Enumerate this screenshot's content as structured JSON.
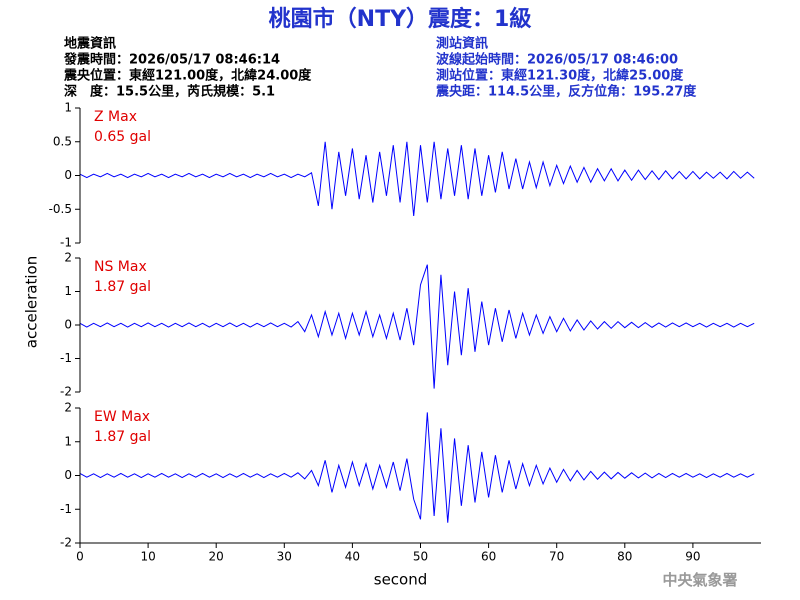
{
  "header": {
    "title": "桃園市（NTY）震度：1級",
    "left": [
      "地震資訊",
      "發震時間：2026/05/17 08:46:14",
      "震央位置：東經121.00度，北緯24.00度",
      "深　度：15.5公里，芮氏規模：5.1"
    ],
    "right": [
      "測站資訊",
      "波線起始時間：2026/05/17 08:46:00",
      "測站位置：東經121.30度，北緯25.00度",
      "震央距：114.5公里，反方位角：195.27度"
    ],
    "y_label": "acceleration",
    "footer": "中央氣象署"
  },
  "chart_data": [
    {
      "type": "line",
      "title": "Z Max",
      "annotation": "0.65 gal",
      "color": "#0000ff",
      "xlim": [
        0,
        100
      ],
      "ylim": [
        -1,
        1
      ],
      "yticks": [
        -1,
        -0.5,
        0,
        0.5,
        1
      ],
      "x": [
        0,
        1,
        2,
        3,
        4,
        5,
        6,
        7,
        8,
        9,
        10,
        11,
        12,
        13,
        14,
        15,
        16,
        17,
        18,
        19,
        20,
        21,
        22,
        23,
        24,
        25,
        26,
        27,
        28,
        29,
        30,
        31,
        32,
        33,
        34,
        35,
        36,
        37,
        38,
        39,
        40,
        41,
        42,
        43,
        44,
        45,
        46,
        47,
        48,
        49,
        50,
        51,
        52,
        53,
        54,
        55,
        56,
        57,
        58,
        59,
        60,
        61,
        62,
        63,
        64,
        65,
        66,
        67,
        68,
        69,
        70,
        71,
        72,
        73,
        74,
        75,
        76,
        77,
        78,
        79,
        80,
        81,
        82,
        83,
        84,
        85,
        86,
        87,
        88,
        89,
        90,
        91,
        92,
        93,
        94,
        95,
        96,
        97,
        98,
        99
      ],
      "values": [
        0.02,
        -0.03,
        0.02,
        -0.02,
        0.03,
        -0.02,
        0.02,
        -0.03,
        0.02,
        -0.02,
        0.03,
        -0.02,
        0.02,
        -0.03,
        0.02,
        -0.02,
        0.03,
        -0.02,
        0.02,
        -0.03,
        0.02,
        -0.02,
        0.03,
        -0.02,
        0.02,
        -0.03,
        0.02,
        -0.02,
        0.03,
        -0.02,
        0.02,
        -0.03,
        0.02,
        -0.02,
        0.04,
        -0.45,
        0.5,
        -0.5,
        0.35,
        -0.3,
        0.4,
        -0.35,
        0.3,
        -0.4,
        0.35,
        -0.3,
        0.45,
        -0.4,
        0.5,
        -0.6,
        0.45,
        -0.4,
        0.5,
        -0.35,
        0.4,
        -0.3,
        0.45,
        -0.35,
        0.4,
        -0.3,
        0.3,
        -0.25,
        0.35,
        -0.2,
        0.25,
        -0.2,
        0.2,
        -0.18,
        0.2,
        -0.15,
        0.15,
        -0.12,
        0.14,
        -0.1,
        0.12,
        -0.1,
        0.1,
        -0.08,
        0.1,
        -0.08,
        0.08,
        -0.07,
        0.08,
        -0.06,
        0.07,
        -0.06,
        0.07,
        -0.05,
        0.06,
        -0.05,
        0.06,
        -0.05,
        0.05,
        -0.04,
        0.05,
        -0.05,
        0.06,
        -0.04,
        0.05,
        -0.04
      ]
    },
    {
      "type": "line",
      "title": "NS Max",
      "annotation": "1.87 gal",
      "color": "#0000ff",
      "xlim": [
        0,
        100
      ],
      "ylim": [
        -2,
        2
      ],
      "yticks": [
        -2,
        -1,
        0,
        1,
        2
      ],
      "x": [
        0,
        1,
        2,
        3,
        4,
        5,
        6,
        7,
        8,
        9,
        10,
        11,
        12,
        13,
        14,
        15,
        16,
        17,
        18,
        19,
        20,
        21,
        22,
        23,
        24,
        25,
        26,
        27,
        28,
        29,
        30,
        31,
        32,
        33,
        34,
        35,
        36,
        37,
        38,
        39,
        40,
        41,
        42,
        43,
        44,
        45,
        46,
        47,
        48,
        49,
        50,
        51,
        52,
        53,
        54,
        55,
        56,
        57,
        58,
        59,
        60,
        61,
        62,
        63,
        64,
        65,
        66,
        67,
        68,
        69,
        70,
        71,
        72,
        73,
        74,
        75,
        76,
        77,
        78,
        79,
        80,
        81,
        82,
        83,
        84,
        85,
        86,
        87,
        88,
        89,
        90,
        91,
        92,
        93,
        94,
        95,
        96,
        97,
        98,
        99
      ],
      "values": [
        0.05,
        -0.06,
        0.05,
        -0.05,
        0.06,
        -0.05,
        0.05,
        -0.06,
        0.05,
        -0.05,
        0.06,
        -0.05,
        0.05,
        -0.06,
        0.05,
        -0.05,
        0.06,
        -0.05,
        0.05,
        -0.06,
        0.05,
        -0.05,
        0.06,
        -0.05,
        0.05,
        -0.06,
        0.05,
        -0.05,
        0.06,
        -0.05,
        0.05,
        -0.06,
        0.1,
        -0.2,
        0.3,
        -0.35,
        0.4,
        -0.3,
        0.35,
        -0.4,
        0.35,
        -0.3,
        0.4,
        -0.35,
        0.3,
        -0.4,
        0.35,
        -0.45,
        0.5,
        -0.6,
        1.2,
        1.8,
        -1.9,
        1.5,
        -1.2,
        1.0,
        -0.9,
        1.1,
        -0.8,
        0.7,
        -0.6,
        0.5,
        -0.5,
        0.45,
        -0.4,
        0.35,
        -0.3,
        0.3,
        -0.25,
        0.25,
        -0.2,
        0.2,
        -0.18,
        0.15,
        -0.15,
        0.12,
        -0.12,
        0.1,
        -0.1,
        0.1,
        -0.08,
        0.08,
        -0.08,
        0.07,
        -0.07,
        0.06,
        -0.06,
        0.06,
        -0.05,
        0.06,
        -0.05,
        0.05,
        -0.06,
        0.05,
        -0.05,
        0.05,
        -0.06,
        0.05,
        -0.05,
        0.05
      ]
    },
    {
      "type": "line",
      "title": "EW Max",
      "annotation": "1.87 gal",
      "color": "#0000ff",
      "xlim": [
        0,
        100
      ],
      "ylim": [
        -2,
        2
      ],
      "yticks": [
        -2,
        -1,
        0,
        1,
        2
      ],
      "xticks": [
        0,
        10,
        20,
        30,
        40,
        50,
        60,
        70,
        80,
        90
      ],
      "xlabel": "second",
      "x": [
        0,
        1,
        2,
        3,
        4,
        5,
        6,
        7,
        8,
        9,
        10,
        11,
        12,
        13,
        14,
        15,
        16,
        17,
        18,
        19,
        20,
        21,
        22,
        23,
        24,
        25,
        26,
        27,
        28,
        29,
        30,
        31,
        32,
        33,
        34,
        35,
        36,
        37,
        38,
        39,
        40,
        41,
        42,
        43,
        44,
        45,
        46,
        47,
        48,
        49,
        50,
        51,
        52,
        53,
        54,
        55,
        56,
        57,
        58,
        59,
        60,
        61,
        62,
        63,
        64,
        65,
        66,
        67,
        68,
        69,
        70,
        71,
        72,
        73,
        74,
        75,
        76,
        77,
        78,
        79,
        80,
        81,
        82,
        83,
        84,
        85,
        86,
        87,
        88,
        89,
        90,
        91,
        92,
        93,
        94,
        95,
        96,
        97,
        98,
        99
      ],
      "values": [
        0.06,
        -0.05,
        0.05,
        -0.06,
        0.05,
        -0.05,
        0.06,
        -0.05,
        0.05,
        -0.06,
        0.05,
        -0.05,
        0.06,
        -0.05,
        0.05,
        -0.06,
        0.05,
        -0.05,
        0.06,
        -0.05,
        0.05,
        -0.06,
        0.05,
        -0.05,
        0.06,
        -0.05,
        0.05,
        -0.06,
        0.05,
        -0.05,
        0.06,
        -0.05,
        0.08,
        -0.1,
        0.15,
        -0.3,
        0.45,
        -0.5,
        0.3,
        -0.35,
        0.4,
        -0.3,
        0.35,
        -0.4,
        0.3,
        -0.35,
        0.4,
        -0.45,
        0.5,
        -0.7,
        -1.3,
        1.87,
        -1.2,
        1.4,
        -1.4,
        1.1,
        -0.9,
        0.9,
        -0.8,
        0.7,
        -0.65,
        0.6,
        -0.5,
        0.45,
        -0.4,
        0.35,
        -0.3,
        0.3,
        -0.25,
        0.22,
        -0.2,
        0.18,
        -0.16,
        0.15,
        -0.13,
        0.12,
        -0.11,
        0.1,
        -0.1,
        0.09,
        -0.08,
        0.08,
        -0.07,
        0.07,
        -0.07,
        0.06,
        -0.06,
        0.06,
        -0.05,
        0.06,
        -0.05,
        0.05,
        -0.06,
        0.05,
        -0.05,
        0.06,
        -0.05,
        0.05,
        -0.05,
        0.05
      ]
    }
  ]
}
